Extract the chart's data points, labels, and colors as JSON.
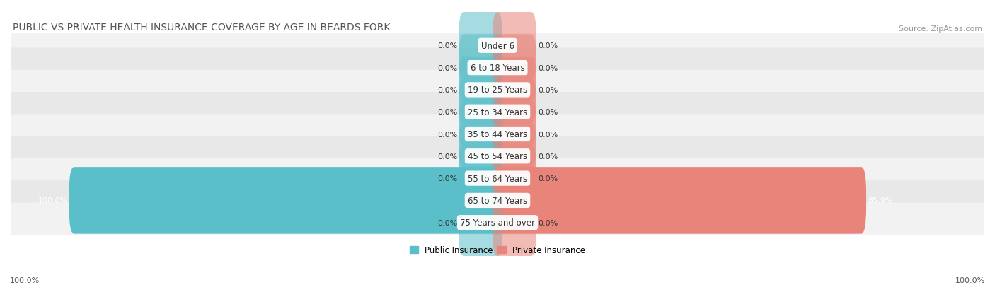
{
  "title": "PUBLIC VS PRIVATE HEALTH INSURANCE COVERAGE BY AGE IN BEARDS FORK",
  "source": "Source: ZipAtlas.com",
  "categories": [
    "Under 6",
    "6 to 18 Years",
    "19 to 25 Years",
    "25 to 34 Years",
    "35 to 44 Years",
    "45 to 54 Years",
    "55 to 64 Years",
    "65 to 74 Years",
    "75 Years and over"
  ],
  "public_values": [
    0.0,
    0.0,
    0.0,
    0.0,
    0.0,
    0.0,
    0.0,
    100.0,
    0.0
  ],
  "private_values": [
    0.0,
    0.0,
    0.0,
    0.0,
    0.0,
    0.0,
    0.0,
    85.9,
    0.0
  ],
  "public_color": "#5bbfc9",
  "private_color": "#e8847a",
  "public_label": "Public Insurance",
  "private_label": "Private Insurance",
  "row_colors": [
    "#f2f2f2",
    "#e8e8e8"
  ],
  "max_value": 100.0,
  "stub_pct": 8.0,
  "x_left_label": "100.0%",
  "x_right_label": "100.0%",
  "title_fontsize": 10,
  "source_fontsize": 8,
  "value_fontsize": 8,
  "category_fontsize": 8.5,
  "legend_fontsize": 8.5
}
